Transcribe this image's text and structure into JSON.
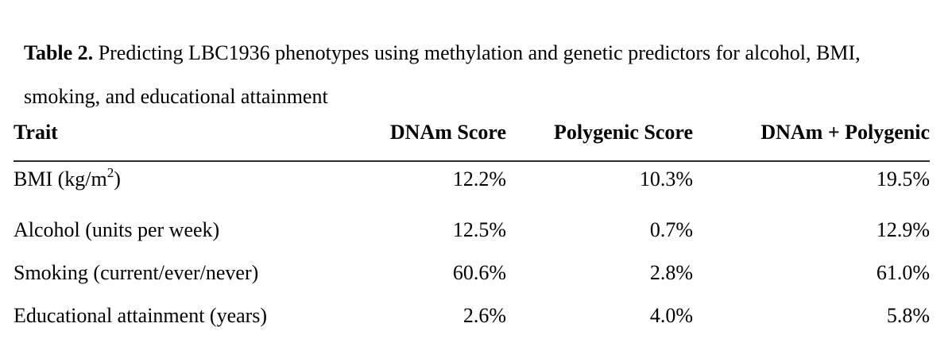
{
  "caption": {
    "label": "Table 2.",
    "text": "Predicting LBC1936 phenotypes using methylation and genetic predictors for alcohol, BMI, smoking, and educational attainment"
  },
  "table": {
    "columns": [
      "Trait",
      "DNAm Score",
      "Polygenic Score",
      "DNAm + Polygenic"
    ],
    "rows": [
      {
        "trait_prefix": "BMI (kg/m",
        "trait_sup": "2",
        "trait_suffix": ")",
        "dnam_score": "12.2%",
        "polygenic_score": "10.3%",
        "dnam_plus_polygenic": "19.5%"
      },
      {
        "trait_prefix": "Alcohol (units per week)",
        "trait_sup": "",
        "trait_suffix": "",
        "dnam_score": "12.5%",
        "polygenic_score": "0.7%",
        "dnam_plus_polygenic": "12.9%"
      },
      {
        "trait_prefix": "Smoking (current/ever/never)",
        "trait_sup": "",
        "trait_suffix": "",
        "dnam_score": "60.6%",
        "polygenic_score": "2.8%",
        "dnam_plus_polygenic": "61.0%"
      },
      {
        "trait_prefix": "Educational attainment (years)",
        "trait_sup": "",
        "trait_suffix": "",
        "dnam_score": "2.6%",
        "polygenic_score": "4.0%",
        "dnam_plus_polygenic": "5.8%"
      }
    ]
  },
  "colors": {
    "text": "#000000",
    "rule": "#2a2a2a",
    "background": "#ffffff"
  }
}
